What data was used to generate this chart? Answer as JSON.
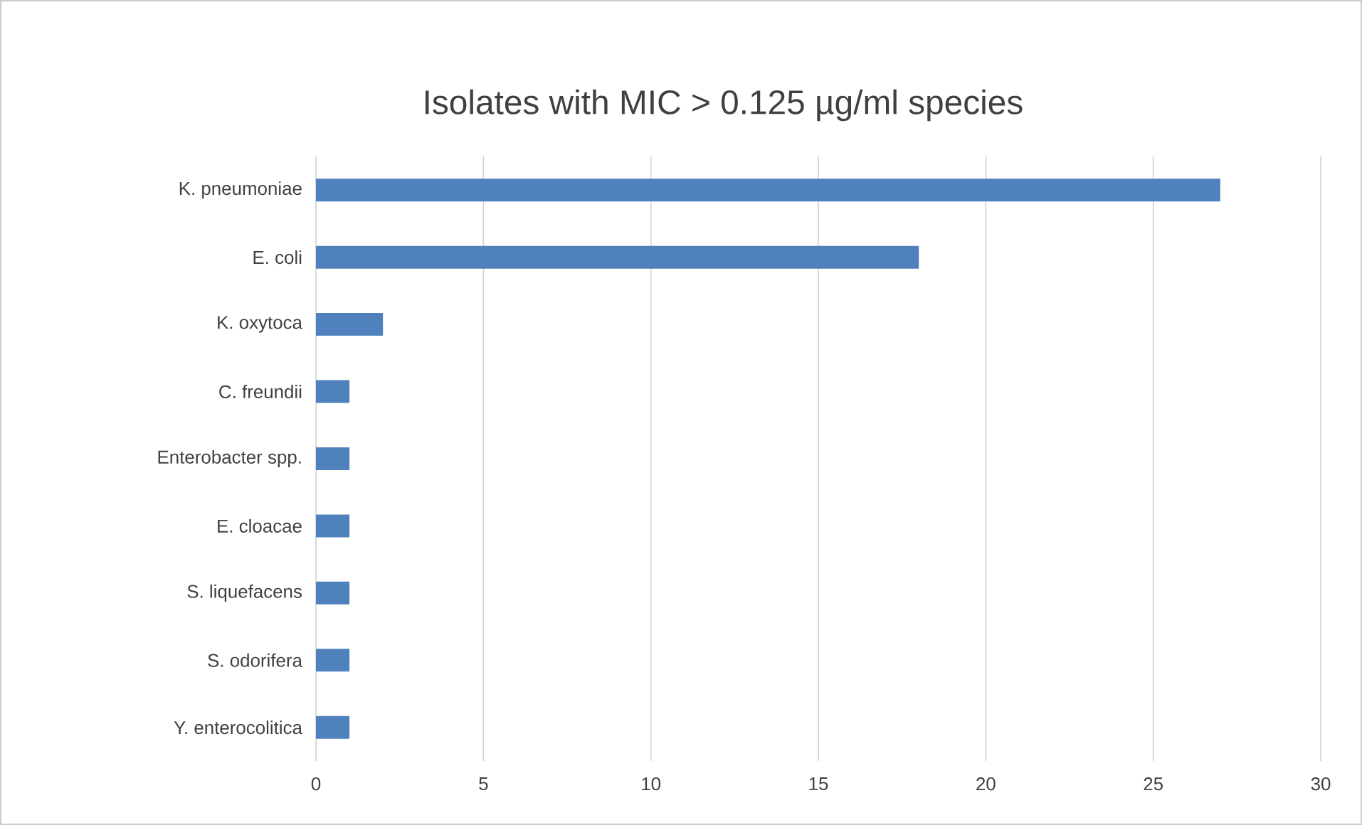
{
  "chart_data": {
    "type": "bar",
    "orientation": "horizontal",
    "title": "Isolates with MIC > 0.125 µg/ml species",
    "categories": [
      "K. pneumoniae",
      "E. coli",
      "K. oxytoca",
      "C. freundii",
      "Enterobacter spp.",
      "E. cloacae",
      "S. liquefacens",
      "S. odorifera",
      "Y. enterocolitica"
    ],
    "values": [
      27,
      18,
      2,
      1,
      1,
      1,
      1,
      1,
      1
    ],
    "color": "#4f81bd",
    "xlim": [
      0,
      30
    ],
    "xticks": [
      0,
      5,
      10,
      15,
      20,
      25,
      30
    ],
    "grid": "x"
  }
}
